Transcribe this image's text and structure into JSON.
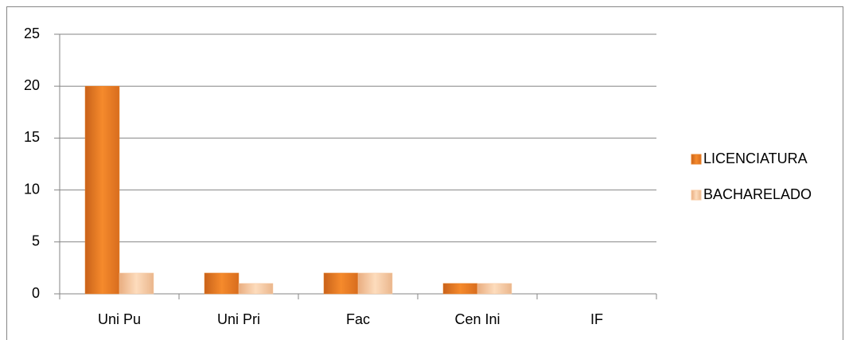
{
  "chart_data": {
    "type": "bar",
    "categories": [
      "Uni Pu",
      "Uni Pri",
      "Fac",
      "Cen Ini",
      "IF"
    ],
    "series": [
      {
        "name": "LICENCIATURA",
        "color": "#e8822a",
        "values": [
          20,
          2,
          2,
          1,
          0
        ]
      },
      {
        "name": "BACHARELADO",
        "color": "#f8c9a0",
        "values": [
          2,
          1,
          2,
          1,
          0
        ]
      }
    ],
    "ylim": [
      0,
      25
    ],
    "yticks": [
      0,
      5,
      10,
      15,
      20,
      25
    ],
    "grid": true,
    "legend": "right"
  }
}
